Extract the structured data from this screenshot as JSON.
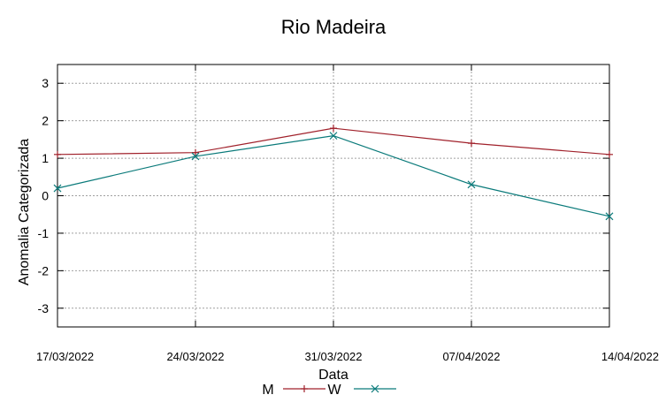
{
  "chart_data": {
    "type": "line",
    "title": "Rio Madeira",
    "xlabel": "Data",
    "ylabel": "Anomalia Categorizada",
    "categories": [
      "17/03/2022",
      "24/03/2022",
      "31/03/2022",
      "07/04/2022",
      "14/04/2022"
    ],
    "yticks": [
      "-3",
      "-2",
      "-1",
      "0",
      "1",
      "2",
      "3"
    ],
    "ylim": [
      -3.5,
      3.5
    ],
    "grid": true,
    "legend_position": "bottom",
    "series": [
      {
        "name": "M",
        "values": [
          1.1,
          1.15,
          1.8,
          1.4,
          1.1
        ],
        "color": "#a0202a",
        "marker": "plus"
      },
      {
        "name": "W",
        "values": [
          0.2,
          1.05,
          1.6,
          0.3,
          -0.55
        ],
        "color": "#0a7a7a",
        "marker": "cross"
      }
    ]
  }
}
